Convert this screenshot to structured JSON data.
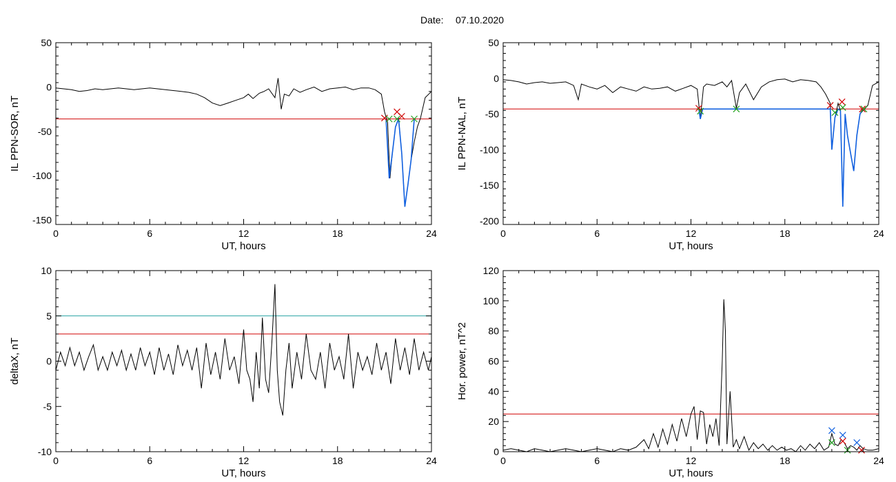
{
  "header": {
    "date_label": "Date:",
    "date_value": "07.10.2020"
  },
  "chart_data": [
    {
      "type": "line",
      "id": "sor",
      "xlabel": "UT, hours",
      "ylabel": "IL PPN-SOR, nT",
      "xlim": [
        0,
        24
      ],
      "ylim": [
        -155,
        50
      ],
      "xticks": [
        0,
        6,
        12,
        18,
        24
      ],
      "yticks": [
        50,
        0,
        -50,
        -100,
        -150
      ],
      "hlines": [
        {
          "y": -36,
          "color": "#d00000"
        }
      ],
      "series": [
        {
          "color": "#000000",
          "x": [
            0,
            0.5,
            1,
            1.5,
            2,
            2.5,
            3,
            3.5,
            4,
            4.5,
            5,
            5.5,
            6,
            6.5,
            7,
            7.5,
            8,
            8.5,
            9,
            9.5,
            10,
            10.5,
            11,
            11.5,
            12,
            12.3,
            12.6,
            13,
            13.3,
            13.6,
            14,
            14.2,
            14.4,
            14.6,
            14.9,
            15.2,
            15.6,
            16,
            16.5,
            17,
            17.5,
            18,
            18.5,
            19,
            19.5,
            20,
            20.4,
            20.8,
            21,
            21.2,
            21.35,
            21.5,
            21.7,
            21.9,
            22.1,
            22.3,
            22.5,
            22.7,
            22.9,
            23.1,
            23.3,
            23.6,
            24
          ],
          "y": [
            -1,
            -2,
            -3,
            -5,
            -4,
            -2,
            -3,
            -2,
            -1,
            -2,
            -3,
            -2,
            -1,
            -2,
            -3,
            -4,
            -5,
            -6,
            -8,
            -12,
            -18,
            -21,
            -18,
            -15,
            -12,
            -8,
            -13,
            -7,
            -5,
            -2,
            -12,
            10,
            -25,
            -8,
            -10,
            -2,
            -6,
            -3,
            0,
            -5,
            -2,
            -1,
            0,
            -3,
            -1,
            -1,
            -3,
            -8,
            -28,
            -40,
            -103,
            -75,
            -45,
            -35,
            -75,
            -135,
            -110,
            -82,
            -62,
            -45,
            -35,
            -12,
            -5
          ]
        },
        {
          "color": "#1060e0",
          "x": [
            21.1,
            21.3,
            21.5,
            21.7,
            21.9,
            22.1,
            22.3,
            22.5,
            22.7,
            22.9
          ],
          "y": [
            -36,
            -103,
            -75,
            -45,
            -36,
            -75,
            -135,
            -110,
            -82,
            -36
          ]
        }
      ],
      "markers": [
        {
          "x": 21.0,
          "y": -35,
          "color": "#d00000"
        },
        {
          "x": 21.3,
          "y": -36,
          "color": "#20a020"
        },
        {
          "x": 21.8,
          "y": -28,
          "color": "#d00000"
        },
        {
          "x": 21.8,
          "y": -36,
          "color": "#20a020"
        },
        {
          "x": 22.1,
          "y": -33,
          "color": "#d00000"
        },
        {
          "x": 22.9,
          "y": -36,
          "color": "#20a020"
        }
      ]
    },
    {
      "type": "line",
      "id": "nal",
      "xlabel": "UT, hours",
      "ylabel": "IL PPN-NAL, nT",
      "xlim": [
        0,
        24
      ],
      "ylim": [
        -205,
        50
      ],
      "xticks": [
        0,
        6,
        12,
        18,
        24
      ],
      "yticks": [
        50,
        0,
        -50,
        -100,
        -150,
        -200
      ],
      "hlines": [
        {
          "y": -43,
          "color": "#d00000"
        }
      ],
      "series": [
        {
          "color": "#000000",
          "x": [
            0,
            0.5,
            1,
            1.5,
            2,
            2.5,
            3,
            3.5,
            4,
            4.5,
            4.8,
            5,
            5.5,
            6,
            6.5,
            7,
            7.5,
            8,
            8.5,
            9,
            9.5,
            10,
            10.5,
            11,
            11.5,
            12,
            12.4,
            12.6,
            12.8,
            13,
            13.5,
            14,
            14.3,
            14.6,
            14.9,
            15.1,
            15.5,
            16,
            16.5,
            17,
            17.5,
            18,
            18.5,
            19,
            19.5,
            20,
            20.3,
            20.6,
            20.9,
            21.0,
            21.2,
            21.4,
            21.55,
            21.7,
            21.85,
            22.0,
            22.2,
            22.4,
            22.6,
            22.8,
            23.0,
            23.3,
            23.6,
            24
          ],
          "y": [
            -2,
            -3,
            -5,
            -8,
            -6,
            -5,
            -7,
            -6,
            -5,
            -10,
            -30,
            -8,
            -12,
            -15,
            -10,
            -20,
            -12,
            -15,
            -18,
            -12,
            -15,
            -14,
            -12,
            -18,
            -14,
            -10,
            -15,
            -57,
            -12,
            -8,
            -10,
            -5,
            -12,
            -3,
            -42,
            -20,
            -8,
            -30,
            -12,
            -5,
            -2,
            -1,
            -5,
            -2,
            -3,
            -5,
            -12,
            -22,
            -35,
            -100,
            -55,
            -35,
            -45,
            -180,
            -50,
            -80,
            -105,
            -130,
            -80,
            -50,
            -45,
            -38,
            -10,
            -5
          ]
        },
        {
          "color": "#1060e0",
          "x": [
            12.5,
            12.6,
            12.75,
            20.9,
            21.0,
            21.2,
            21.4,
            21.55,
            21.7,
            21.85,
            22.0,
            22.2,
            22.4,
            22.6,
            22.8,
            23.0
          ],
          "y": [
            -43,
            -57,
            -43,
            -43,
            -100,
            -55,
            -43,
            -45,
            -180,
            -50,
            -80,
            -105,
            -130,
            -80,
            -50,
            -43
          ]
        }
      ],
      "markers": [
        {
          "x": 12.5,
          "y": -42,
          "color": "#d00000"
        },
        {
          "x": 12.6,
          "y": -46,
          "color": "#20a020"
        },
        {
          "x": 14.9,
          "y": -43,
          "color": "#20a020"
        },
        {
          "x": 20.9,
          "y": -38,
          "color": "#d00000"
        },
        {
          "x": 21.2,
          "y": -48,
          "color": "#20a020"
        },
        {
          "x": 21.65,
          "y": -33,
          "color": "#d00000"
        },
        {
          "x": 21.7,
          "y": -41,
          "color": "#20a020"
        },
        {
          "x": 22.95,
          "y": -43,
          "color": "#d00000"
        },
        {
          "x": 23.05,
          "y": -43,
          "color": "#20a020"
        }
      ]
    },
    {
      "type": "line",
      "id": "deltax",
      "xlabel": "UT, hours",
      "ylabel": "deltaX, nT",
      "xlim": [
        0,
        24
      ],
      "ylim": [
        -10,
        10
      ],
      "xticks": [
        0,
        6,
        12,
        18,
        24
      ],
      "yticks": [
        10,
        5,
        0,
        -5,
        -10
      ],
      "hlines": [
        {
          "y": 5,
          "color": "#20a0a0"
        },
        {
          "y": 3,
          "color": "#d00000"
        }
      ],
      "series": [
        {
          "color": "#000000",
          "x": [
            0,
            0.3,
            0.6,
            0.9,
            1.2,
            1.5,
            1.8,
            2.1,
            2.4,
            2.7,
            3,
            3.3,
            3.6,
            3.9,
            4.2,
            4.5,
            4.8,
            5.1,
            5.4,
            5.7,
            6,
            6.3,
            6.6,
            6.9,
            7.2,
            7.5,
            7.8,
            8.1,
            8.4,
            8.7,
            9,
            9.3,
            9.6,
            9.9,
            10.2,
            10.5,
            10.8,
            11.1,
            11.4,
            11.7,
            12,
            12.2,
            12.4,
            12.6,
            12.8,
            13,
            13.2,
            13.4,
            13.6,
            13.8,
            14,
            14.15,
            14.3,
            14.5,
            14.7,
            14.9,
            15.1,
            15.4,
            15.7,
            16,
            16.3,
            16.6,
            16.9,
            17.2,
            17.5,
            17.8,
            18.1,
            18.4,
            18.7,
            19,
            19.3,
            19.6,
            19.9,
            20.2,
            20.5,
            20.8,
            21.1,
            21.4,
            21.7,
            22,
            22.3,
            22.6,
            22.9,
            23.2,
            23.5,
            23.8,
            24
          ],
          "y": [
            -1,
            1,
            -0.5,
            1.5,
            -0.5,
            1,
            -1,
            0.5,
            1.8,
            -1,
            0.5,
            -1,
            1,
            -0.5,
            1.2,
            -1,
            0.8,
            -1,
            1.5,
            -0.5,
            1,
            -1.5,
            1.5,
            -1,
            0.8,
            -1.5,
            1.8,
            -0.5,
            1.2,
            -1,
            1.5,
            -3,
            2,
            -1.5,
            1,
            -2,
            2.5,
            -1,
            0.5,
            -2.5,
            3.5,
            -1,
            -2,
            -4.5,
            1,
            -3,
            4.8,
            -2,
            -3.5,
            2,
            8.5,
            -1,
            -4.5,
            -6,
            -1,
            2,
            -3,
            1,
            -2,
            3,
            -1,
            -2,
            1,
            -3,
            2,
            -1,
            0.5,
            -2,
            3,
            -3,
            1,
            -1,
            0.5,
            -1.5,
            2,
            -1,
            1,
            -2.5,
            2.5,
            -1,
            1.5,
            -1.5,
            2.5,
            -1,
            1,
            -1,
            0.5
          ]
        }
      ],
      "markers": []
    },
    {
      "type": "line",
      "id": "power",
      "xlabel": "UT, hours",
      "ylabel": "Hor. power, nT^2",
      "xlim": [
        0,
        24
      ],
      "ylim": [
        0,
        120
      ],
      "xticks": [
        0,
        6,
        12,
        18,
        24
      ],
      "yticks": [
        120,
        100,
        80,
        60,
        40,
        20,
        0
      ],
      "hlines": [
        {
          "y": 25,
          "color": "#d00000"
        }
      ],
      "series": [
        {
          "color": "#000000",
          "x": [
            0,
            0.5,
            1,
            1.5,
            2,
            2.5,
            3,
            3.5,
            4,
            4.5,
            5,
            5.5,
            6,
            6.5,
            7,
            7.5,
            8,
            8.5,
            9,
            9.3,
            9.6,
            9.9,
            10.2,
            10.5,
            10.8,
            11.1,
            11.4,
            11.7,
            12,
            12.2,
            12.4,
            12.6,
            12.8,
            13,
            13.2,
            13.4,
            13.6,
            13.8,
            14,
            14.1,
            14.2,
            14.3,
            14.5,
            14.7,
            14.9,
            15.1,
            15.4,
            15.7,
            16,
            16.3,
            16.6,
            16.9,
            17.2,
            17.5,
            17.8,
            18.1,
            18.4,
            18.7,
            19,
            19.3,
            19.6,
            19.9,
            20.2,
            20.5,
            20.8,
            21,
            21.2,
            21.4,
            21.6,
            21.8,
            22,
            22.2,
            22.4,
            22.6,
            22.8,
            23,
            23.3,
            23.6,
            24
          ],
          "y": [
            1,
            2,
            1,
            0,
            2,
            1,
            0,
            1,
            2,
            1,
            0,
            1,
            2,
            1,
            0,
            2,
            1,
            3,
            8,
            2,
            12,
            3,
            15,
            5,
            18,
            7,
            22,
            10,
            25,
            30,
            8,
            27,
            26,
            5,
            18,
            10,
            22,
            4,
            60,
            101,
            80,
            5,
            40,
            3,
            8,
            2,
            10,
            1,
            6,
            2,
            5,
            1,
            4,
            1,
            3,
            1,
            2,
            0,
            4,
            1,
            5,
            2,
            6,
            1,
            3,
            12,
            5,
            4,
            8,
            6,
            2,
            4,
            3,
            1,
            4,
            2,
            1,
            1,
            2
          ]
        }
      ],
      "markers": [
        {
          "x": 21.0,
          "y": 14,
          "color": "#1060e0"
        },
        {
          "x": 21.0,
          "y": 6,
          "color": "#20a020"
        },
        {
          "x": 21.7,
          "y": 11,
          "color": "#1060e0"
        },
        {
          "x": 21.7,
          "y": 7,
          "color": "#d00000"
        },
        {
          "x": 22.0,
          "y": 1,
          "color": "#20a020"
        },
        {
          "x": 22.6,
          "y": 6,
          "color": "#1060e0"
        },
        {
          "x": 22.9,
          "y": 1,
          "color": "#d00000"
        }
      ]
    }
  ]
}
